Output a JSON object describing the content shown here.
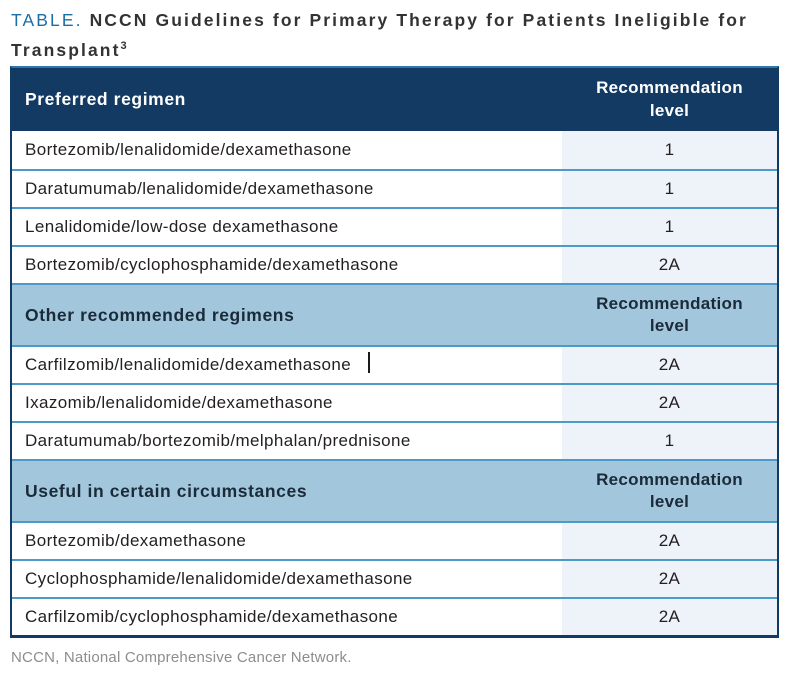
{
  "title": {
    "label": "TABLE.",
    "text": " NCCN Guidelines for Primary Therapy for Patients Ineligible for Transplant",
    "superscript": "3"
  },
  "table": {
    "sections": [
      {
        "header": "Preferred regimen",
        "col2_header": "Recommendation level",
        "rows": [
          {
            "regimen": "Bortezomib/lenalidomide/dexamethasone",
            "level": "1"
          },
          {
            "regimen": "Daratumumab/lenalidomide/dexamethasone",
            "level": "1"
          },
          {
            "regimen": "Lenalidomide/low-dose dexamethasone",
            "level": "1"
          },
          {
            "regimen": "Bortezomib/cyclophosphamide/dexamethasone",
            "level": "2A"
          }
        ]
      },
      {
        "header": "Other recommended regimens",
        "col2_header": "Recommendation level",
        "rows": [
          {
            "regimen": "Carfilzomib/lenalidomide/dexamethasone",
            "level": "2A"
          },
          {
            "regimen": "Ixazomib/lenalidomide/dexamethasone",
            "level": "2A"
          },
          {
            "regimen": "Daratumumab/bortezomib/melphalan/prednisone",
            "level": "1"
          }
        ]
      },
      {
        "header": "Useful in certain circumstances",
        "col2_header": "Recommendation level",
        "rows": [
          {
            "regimen": "Bortezomib/dexamethasone",
            "level": "2A"
          },
          {
            "regimen": "Cyclophosphamide/lenalidomide/dexamethasone",
            "level": "2A"
          },
          {
            "regimen": "Carfilzomib/cyclophosphamide/dexamethasone",
            "level": "2A"
          }
        ]
      }
    ]
  },
  "footnote": "NCCN, National Comprehensive Cancer Network.",
  "colors": {
    "header_bg": "#123a63",
    "section_bg": "#a2c7dd",
    "level_column_bg": "#edf3f9",
    "row_divider": "#4d9ac8",
    "outer_border": "#123a63",
    "top_border": "#2d77ac",
    "title_accent": "#1c6ea4",
    "title_text": "#333333",
    "body_text": "#231f20",
    "header_text": "#ffffff",
    "section_text": "#1b2a38",
    "footnote_text": "#8d8d8d"
  }
}
